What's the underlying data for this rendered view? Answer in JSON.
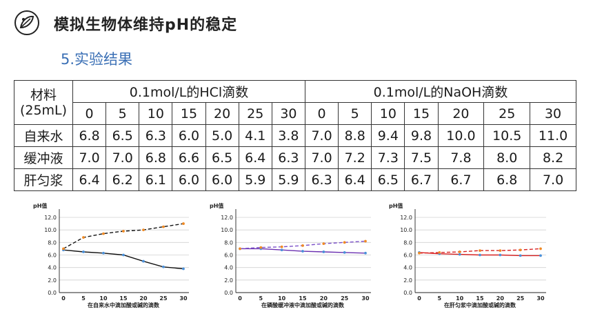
{
  "header": {
    "title": "模拟生物体维持pH的稳定",
    "subtitle": "5.实验结果"
  },
  "table": {
    "material_label_line1": "材料",
    "material_label_line2": "(25mL)",
    "hcl_header": "0.1mol/L的HCl滴数",
    "naoh_header": "0.1mol/L的NaOH滴数",
    "drops": [
      "0",
      "5",
      "10",
      "15",
      "20",
      "25",
      "30"
    ],
    "rows": [
      {
        "name": "自来水",
        "hcl": [
          "6.8",
          "6.5",
          "6.3",
          "6.0",
          "5.0",
          "4.1",
          "3.8"
        ],
        "naoh": [
          "7.0",
          "8.8",
          "9.4",
          "9.8",
          "10.0",
          "10.5",
          "11.0"
        ]
      },
      {
        "name": "缓冲液",
        "hcl": [
          "7.0",
          "7.0",
          "6.8",
          "6.6",
          "6.5",
          "6.4",
          "6.3"
        ],
        "naoh": [
          "7.0",
          "7.2",
          "7.3",
          "7.5",
          "7.8",
          "8.0",
          "8.2"
        ]
      },
      {
        "name": "肝匀浆",
        "hcl": [
          "6.4",
          "6.2",
          "6.1",
          "6.0",
          "6.0",
          "5.9",
          "5.9"
        ],
        "naoh": [
          "6.3",
          "6.4",
          "6.5",
          "6.7",
          "6.7",
          "6.8",
          "7.0"
        ]
      }
    ]
  },
  "chart_data": [
    {
      "type": "line",
      "ylabel": "pH值",
      "xlabel": "在自来水中滴加酸或碱的滴数",
      "x": [
        0,
        5,
        10,
        15,
        20,
        25,
        30
      ],
      "ylim": [
        0,
        12
      ],
      "yticks": [
        "0.0",
        "2.0",
        "4.0",
        "6.0",
        "8.0",
        "10.0",
        "12.0"
      ],
      "xticks": [
        "0",
        "5",
        "10",
        "15",
        "20",
        "25",
        "30"
      ],
      "grid": true,
      "series": [
        {
          "values": [
            6.8,
            6.5,
            6.3,
            6.0,
            5.0,
            4.1,
            3.8
          ],
          "line_color": "#111111",
          "marker_color": "#4a90d9",
          "dashed": false
        },
        {
          "values": [
            7.0,
            8.8,
            9.4,
            9.8,
            10.0,
            10.5,
            11.0
          ],
          "line_color": "#111111",
          "marker_color": "#f08a24",
          "dashed": true
        }
      ]
    },
    {
      "type": "line",
      "ylabel": "pH值",
      "xlabel": "在磷酸缓冲液中滴加酸或碱的滴数",
      "x": [
        0,
        5,
        10,
        15,
        20,
        25,
        30
      ],
      "ylim": [
        0,
        12
      ],
      "yticks": [
        "0.0",
        "2.0",
        "4.0",
        "6.0",
        "8.0",
        "10.0",
        "12.0"
      ],
      "xticks": [
        "0",
        "5",
        "10",
        "15",
        "20",
        "25",
        "30"
      ],
      "grid": true,
      "series": [
        {
          "values": [
            7.0,
            7.0,
            6.8,
            6.6,
            6.5,
            6.4,
            6.3
          ],
          "line_color": "#6a2fb0",
          "marker_color": "#4a90d9",
          "dashed": false
        },
        {
          "values": [
            7.0,
            7.2,
            7.3,
            7.5,
            7.8,
            8.0,
            8.2
          ],
          "line_color": "#7a4fc8",
          "marker_color": "#f08a24",
          "dashed": true
        }
      ]
    },
    {
      "type": "line",
      "ylabel": "pH值",
      "xlabel": "在肝匀浆中滴加酸或碱的滴数",
      "x": [
        0,
        5,
        10,
        15,
        20,
        25,
        30
      ],
      "ylim": [
        0,
        12
      ],
      "yticks": [
        "0.0",
        "2.0",
        "4.0",
        "6.0",
        "8.0",
        "10.0",
        "12.0"
      ],
      "xticks": [
        "0",
        "5",
        "10",
        "15",
        "20",
        "25",
        "30"
      ],
      "grid": true,
      "series": [
        {
          "values": [
            6.4,
            6.2,
            6.1,
            6.0,
            6.0,
            5.9,
            5.9
          ],
          "line_color": "#d82020",
          "marker_color": "#4a90d9",
          "dashed": false
        },
        {
          "values": [
            6.3,
            6.4,
            6.5,
            6.7,
            6.7,
            6.8,
            7.0
          ],
          "line_color": "#d82020",
          "marker_color": "#f08a24",
          "dashed": true
        }
      ]
    }
  ]
}
